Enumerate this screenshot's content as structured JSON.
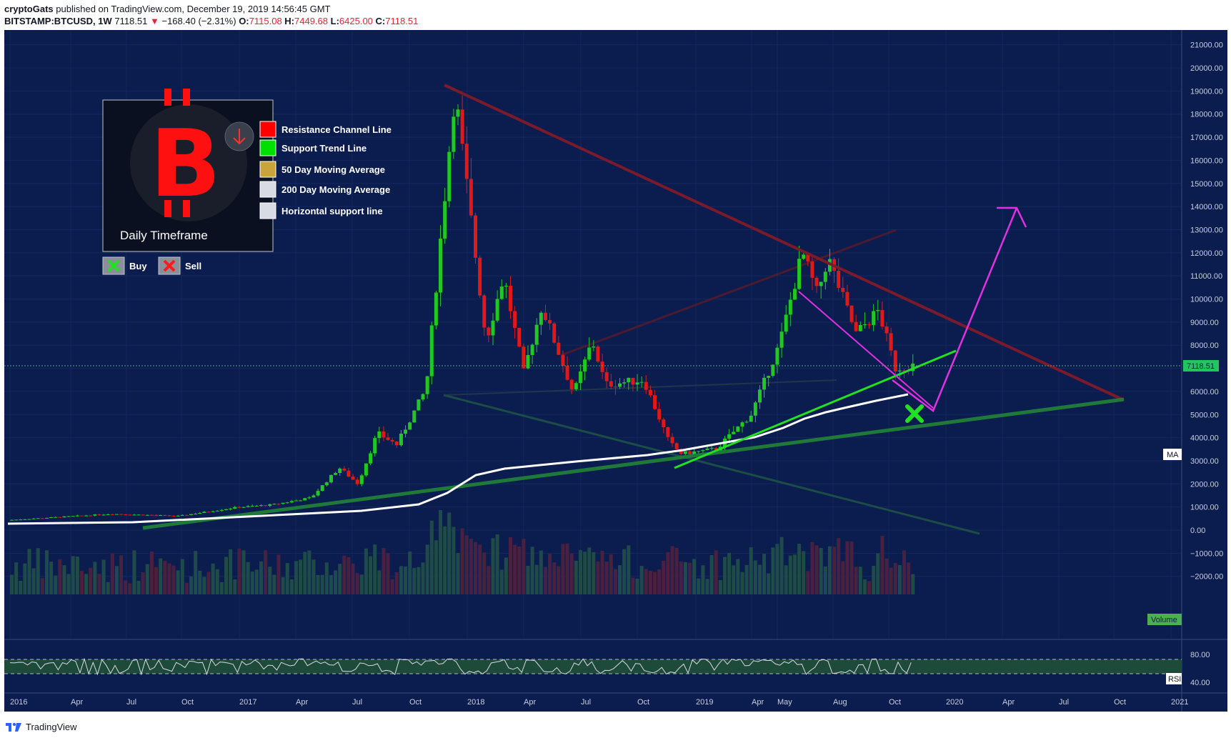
{
  "header": {
    "author": "cryptoGats",
    "published": "published on TradingView.com, December 19, 2019 14:56:45 GMT",
    "symbol": "BITSTAMP:BTCUSD, 1W",
    "last": "7118.51",
    "arrow": "▼",
    "change": "−168.40 (−2.31%)",
    "o_label": "O:",
    "o_value": "7115.08",
    "h_label": "H:",
    "h_value": "7449.68",
    "l_label": "L:",
    "l_value": "6425.00",
    "c_label": "C:",
    "c_value": "7118.51"
  },
  "footer": {
    "brand": "TradingView"
  },
  "legend": {
    "panel_caption": "Daily Timeframe",
    "items": [
      {
        "label": "Resistance Channel Line",
        "color": "#ff0000"
      },
      {
        "label": "Support Trend Line",
        "color": "#00e000"
      },
      {
        "label": "50 Day Moving Average",
        "color": "#c9a43a"
      },
      {
        "label": "200 Day Moving Average",
        "color": "#d8dbe3"
      },
      {
        "label": "Horizontal support line",
        "color": "#d8dbe3"
      }
    ],
    "buy_label": "Buy",
    "sell_label": "Sell"
  },
  "badges": {
    "price": "7118.51",
    "ma": "MA",
    "volume": "Volume",
    "rsi": "RSI"
  },
  "chart_data": {
    "type": "candlestick",
    "y_ticks": [
      "21000.00",
      "20000.00",
      "19000.00",
      "18000.00",
      "17000.00",
      "16000.00",
      "15000.00",
      "14000.00",
      "13000.00",
      "12000.00",
      "11000.00",
      "10000.00",
      "9000.00",
      "8000.00",
      "7000.00",
      "6000.00",
      "5000.00",
      "4000.00",
      "3000.00",
      "2000.00",
      "1000.00",
      "0.00",
      "−1000.00",
      "−2000.00"
    ],
    "rsi_ticks": [
      "80.00",
      "40.00"
    ],
    "x_ticks": [
      "2016",
      "Apr",
      "Jul",
      "Oct",
      "2017",
      "Apr",
      "Jul",
      "Oct",
      "2018",
      "Apr",
      "Jul",
      "Oct",
      "2019",
      "Apr",
      "May",
      "Aug",
      "Oct",
      "2020",
      "Apr",
      "Jul",
      "Oct",
      "2021"
    ],
    "anchors": [
      [
        "2016-01-01",
        430
      ],
      [
        "2016-06-15",
        700
      ],
      [
        "2016-10-01",
        610
      ],
      [
        "2017-01-01",
        980
      ],
      [
        "2017-03-01",
        1100
      ],
      [
        "2017-05-01",
        1400
      ],
      [
        "2017-06-15",
        2700
      ],
      [
        "2017-07-15",
        2000
      ],
      [
        "2017-08-15",
        4200
      ],
      [
        "2017-09-15",
        3700
      ],
      [
        "2017-11-01",
        6100
      ],
      [
        "2017-12-17",
        19000
      ],
      [
        "2018-02-05",
        8200
      ],
      [
        "2018-03-05",
        11000
      ],
      [
        "2018-04-06",
        6800
      ],
      [
        "2018-05-05",
        9700
      ],
      [
        "2018-06-25",
        5900
      ],
      [
        "2018-07-25",
        8200
      ],
      [
        "2018-08-15",
        6300
      ],
      [
        "2018-10-15",
        6500
      ],
      [
        "2018-11-25",
        3800
      ],
      [
        "2018-12-15",
        3300
      ],
      [
        "2019-02-08",
        3500
      ],
      [
        "2019-04-05",
        5000
      ],
      [
        "2019-05-20",
        8000
      ],
      [
        "2019-06-26",
        12000
      ],
      [
        "2019-07-20",
        10200
      ],
      [
        "2019-08-06",
        11800
      ],
      [
        "2019-09-20",
        8500
      ],
      [
        "2019-10-26",
        9500
      ],
      [
        "2019-11-22",
        7000
      ],
      [
        "2019-12-19",
        7118.51
      ]
    ],
    "last_price": 7118.51
  }
}
